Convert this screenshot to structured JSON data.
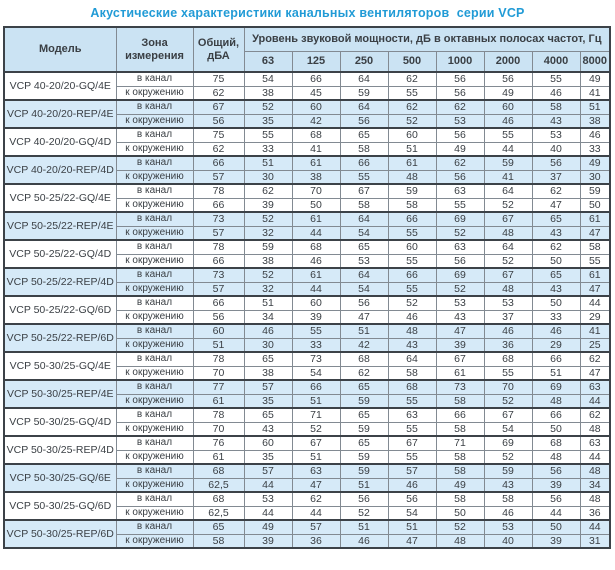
{
  "title": "Акустические характеристики канальных вентиляторов  серии VCP",
  "colors": {
    "title_text": "#219bd6",
    "header_bg": "#cbe3f3",
    "stripe_bg": "#d6eaf8",
    "border_dark": "#3c4248",
    "border_light": "#828a92",
    "text": "#3a3f44"
  },
  "headers": {
    "model": "Модель",
    "zone": "Зона\nизмерения",
    "total": "Общий,\nдБА",
    "octave_title": "Уровень звуковой мощности, дБ в октавных полосах частот, Гц",
    "frequencies": [
      "63",
      "125",
      "250",
      "500",
      "1000",
      "2000",
      "4000",
      "8000"
    ]
  },
  "models": [
    {
      "model": "VCP 40-20/20-GQ/4E",
      "shaded": false,
      "rows": [
        {
          "zone": "в канал",
          "total": "75",
          "levels": [
            "54",
            "66",
            "64",
            "62",
            "56",
            "56",
            "55",
            "49"
          ]
        },
        {
          "zone": "к окружению",
          "total": "62",
          "levels": [
            "38",
            "45",
            "59",
            "55",
            "56",
            "49",
            "46",
            "41"
          ]
        }
      ]
    },
    {
      "model": "VCP 40-20/20-REP/4E",
      "shaded": true,
      "rows": [
        {
          "zone": "в канал",
          "total": "67",
          "levels": [
            "52",
            "60",
            "64",
            "62",
            "62",
            "60",
            "58",
            "51"
          ]
        },
        {
          "zone": "к окружению",
          "total": "56",
          "levels": [
            "35",
            "42",
            "56",
            "52",
            "53",
            "46",
            "43",
            "38"
          ]
        }
      ]
    },
    {
      "model": "VCP 40-20/20-GQ/4D",
      "shaded": false,
      "rows": [
        {
          "zone": "в канал",
          "total": "75",
          "levels": [
            "55",
            "68",
            "65",
            "60",
            "56",
            "55",
            "53",
            "46"
          ]
        },
        {
          "zone": "к окружению",
          "total": "62",
          "levels": [
            "33",
            "41",
            "58",
            "51",
            "49",
            "44",
            "40",
            "33"
          ]
        }
      ]
    },
    {
      "model": "VCP 40-20/20-REP/4D",
      "shaded": true,
      "rows": [
        {
          "zone": "в канал",
          "total": "66",
          "levels": [
            "51",
            "61",
            "66",
            "61",
            "62",
            "59",
            "56",
            "49"
          ]
        },
        {
          "zone": "к окружению",
          "total": "57",
          "levels": [
            "30",
            "38",
            "55",
            "48",
            "56",
            "41",
            "37",
            "30"
          ]
        }
      ]
    },
    {
      "model": "VCP 50-25/22-GQ/4E",
      "shaded": false,
      "rows": [
        {
          "zone": "в канал",
          "total": "78",
          "levels": [
            "62",
            "70",
            "67",
            "59",
            "63",
            "64",
            "62",
            "59"
          ]
        },
        {
          "zone": "к окружению",
          "total": "66",
          "levels": [
            "39",
            "50",
            "58",
            "58",
            "55",
            "52",
            "47",
            "50"
          ]
        }
      ]
    },
    {
      "model": "VCP 50-25/22-REP/4E",
      "shaded": true,
      "rows": [
        {
          "zone": "в канал",
          "total": "73",
          "levels": [
            "52",
            "61",
            "64",
            "66",
            "69",
            "67",
            "65",
            "61"
          ]
        },
        {
          "zone": "к окружению",
          "total": "57",
          "levels": [
            "32",
            "44",
            "54",
            "55",
            "52",
            "48",
            "43",
            "47"
          ]
        }
      ]
    },
    {
      "model": "VCP 50-25/22-GQ/4D",
      "shaded": false,
      "rows": [
        {
          "zone": "в канал",
          "total": "78",
          "levels": [
            "59",
            "68",
            "65",
            "60",
            "63",
            "64",
            "62",
            "58"
          ]
        },
        {
          "zone": "к окружению",
          "total": "66",
          "levels": [
            "38",
            "46",
            "53",
            "55",
            "56",
            "52",
            "50",
            "55"
          ]
        }
      ]
    },
    {
      "model": "VCP 50-25/22-REP/4D",
      "shaded": true,
      "rows": [
        {
          "zone": "в канал",
          "total": "73",
          "levels": [
            "52",
            "61",
            "64",
            "66",
            "69",
            "67",
            "65",
            "61"
          ]
        },
        {
          "zone": "к окружению",
          "total": "57",
          "levels": [
            "32",
            "44",
            "54",
            "55",
            "52",
            "48",
            "43",
            "47"
          ]
        }
      ]
    },
    {
      "model": "VCP 50-25/22-GQ/6D",
      "shaded": false,
      "rows": [
        {
          "zone": "в канал",
          "total": "66",
          "levels": [
            "51",
            "60",
            "56",
            "52",
            "53",
            "53",
            "50",
            "44"
          ]
        },
        {
          "zone": "к окружению",
          "total": "56",
          "levels": [
            "34",
            "39",
            "47",
            "46",
            "43",
            "37",
            "33",
            "29"
          ]
        }
      ]
    },
    {
      "model": "VCP 50-25/22-REP/6D",
      "shaded": true,
      "rows": [
        {
          "zone": "в канал",
          "total": "60",
          "levels": [
            "46",
            "55",
            "51",
            "48",
            "47",
            "46",
            "46",
            "41"
          ]
        },
        {
          "zone": "к окружению",
          "total": "51",
          "levels": [
            "30",
            "33",
            "42",
            "43",
            "39",
            "36",
            "29",
            "25"
          ]
        }
      ]
    },
    {
      "model": "VCP 50-30/25-GQ/4E",
      "shaded": false,
      "rows": [
        {
          "zone": "в канал",
          "total": "78",
          "levels": [
            "65",
            "73",
            "68",
            "64",
            "67",
            "68",
            "66",
            "62"
          ]
        },
        {
          "zone": "к окружению",
          "total": "70",
          "levels": [
            "38",
            "54",
            "62",
            "58",
            "61",
            "55",
            "51",
            "47"
          ]
        }
      ]
    },
    {
      "model": "VCP 50-30/25-REP/4E",
      "shaded": true,
      "rows": [
        {
          "zone": "в канал",
          "total": "77",
          "levels": [
            "57",
            "66",
            "65",
            "68",
            "73",
            "70",
            "69",
            "63"
          ]
        },
        {
          "zone": "к окружению",
          "total": "61",
          "levels": [
            "35",
            "51",
            "59",
            "55",
            "58",
            "52",
            "48",
            "44"
          ]
        }
      ]
    },
    {
      "model": "VCP 50-30/25-GQ/4D",
      "shaded": false,
      "rows": [
        {
          "zone": "в канал",
          "total": "78",
          "levels": [
            "65",
            "71",
            "65",
            "63",
            "66",
            "67",
            "66",
            "62"
          ]
        },
        {
          "zone": "к окружению",
          "total": "70",
          "levels": [
            "43",
            "52",
            "59",
            "55",
            "58",
            "54",
            "50",
            "48"
          ]
        }
      ]
    },
    {
      "model": "VCP 50-30/25-REP/4D",
      "shaded": false,
      "rows": [
        {
          "zone": "в канал",
          "total": "76",
          "levels": [
            "60",
            "67",
            "65",
            "67",
            "71",
            "69",
            "68",
            "63"
          ]
        },
        {
          "zone": "к окружению",
          "total": "61",
          "levels": [
            "35",
            "51",
            "59",
            "55",
            "58",
            "52",
            "48",
            "44"
          ]
        }
      ]
    },
    {
      "model": "VCP 50-30/25-GQ/6E",
      "shaded": true,
      "rows": [
        {
          "zone": "в канал",
          "total": "68",
          "levels": [
            "57",
            "63",
            "59",
            "57",
            "58",
            "59",
            "56",
            "48"
          ]
        },
        {
          "zone": "к окружению",
          "total": "62,5",
          "levels": [
            "44",
            "47",
            "51",
            "46",
            "49",
            "43",
            "39",
            "34"
          ]
        }
      ]
    },
    {
      "model": "VCP 50-30/25-GQ/6D",
      "shaded": false,
      "rows": [
        {
          "zone": "в канал",
          "total": "68",
          "levels": [
            "53",
            "62",
            "56",
            "56",
            "58",
            "58",
            "56",
            "48"
          ]
        },
        {
          "zone": "к окружению",
          "total": "62,5",
          "levels": [
            "44",
            "44",
            "52",
            "54",
            "50",
            "46",
            "44",
            "36"
          ]
        }
      ]
    },
    {
      "model": "VCP 50-30/25-REP/6D",
      "shaded": true,
      "rows": [
        {
          "zone": "в канал",
          "total": "65",
          "levels": [
            "49",
            "57",
            "51",
            "51",
            "52",
            "53",
            "50",
            "44"
          ]
        },
        {
          "zone": "к окружению",
          "total": "58",
          "levels": [
            "39",
            "36",
            "46",
            "47",
            "48",
            "40",
            "39",
            "31"
          ]
        }
      ]
    }
  ]
}
